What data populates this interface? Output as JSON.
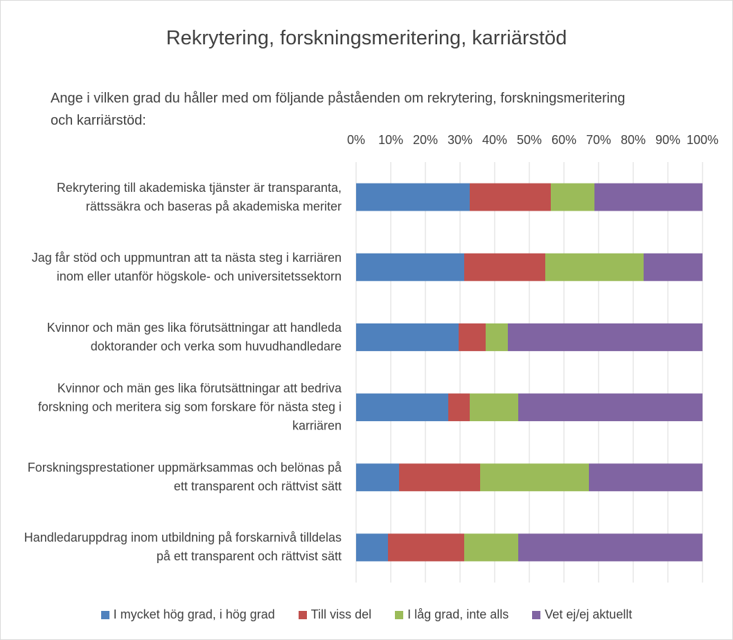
{
  "chart_data": {
    "type": "stacked_barh",
    "title": "Rekrytering, forskningsmeritering, karriärstöd",
    "subtitle": "Ange i vilken grad du håller med om följande påståenden om rekrytering, forskningsmeritering och karriärstöd:",
    "categories": [
      "Rekrytering till akademiska tjänster är transparanta, rättssäkra och baseras på akademiska meriter",
      "Jag får stöd och uppmuntran att ta nästa steg i karriären inom eller utanför högskole- och universitetssektorn",
      "Kvinnor och män ges lika förutsättningar att handleda doktorander och verka som huvudhandledare",
      "Kvinnor och män ges lika förutsättningar att bedriva forskning och meritera sig som forskare för nästa steg i karriären",
      "Forskningsprestationer uppmärksammas och belönas på ett transparent och rättvist sätt",
      "Handledaruppdrag inom utbildning på forskarnivå tilldelas på ett transparent och rättvist sätt"
    ],
    "series": [
      {
        "name": "I mycket hög grad, i hög grad",
        "color": "#4f81bd",
        "values": [
          32.8,
          31.2,
          29.6,
          26.6,
          12.4,
          9.2
        ]
      },
      {
        "name": "Till viss del",
        "color": "#c0504d",
        "values": [
          23.4,
          23.4,
          7.8,
          6.2,
          23.4,
          22.0
        ]
      },
      {
        "name": "I låg grad, inte alls",
        "color": "#9bbb59",
        "values": [
          12.6,
          28.4,
          6.4,
          14.0,
          31.4,
          15.6
        ]
      },
      {
        "name": "Vet ej/ej aktuellt",
        "color": "#8064a2",
        "values": [
          31.2,
          17.0,
          56.2,
          53.2,
          32.8,
          53.2
        ]
      }
    ],
    "xlim": [
      0,
      100
    ],
    "xticks": [
      {
        "value": 0,
        "label": "0%"
      },
      {
        "value": 10,
        "label": "10%"
      },
      {
        "value": 20,
        "label": "20%"
      },
      {
        "value": 30,
        "label": "30%"
      },
      {
        "value": 40,
        "label": "40%"
      },
      {
        "value": 50,
        "label": "50%"
      },
      {
        "value": 60,
        "label": "60%"
      },
      {
        "value": 70,
        "label": "70%"
      },
      {
        "value": 80,
        "label": "80%"
      },
      {
        "value": 90,
        "label": "90%"
      },
      {
        "value": 100,
        "label": "100%"
      }
    ],
    "grid": true,
    "legend": "bottom"
  }
}
